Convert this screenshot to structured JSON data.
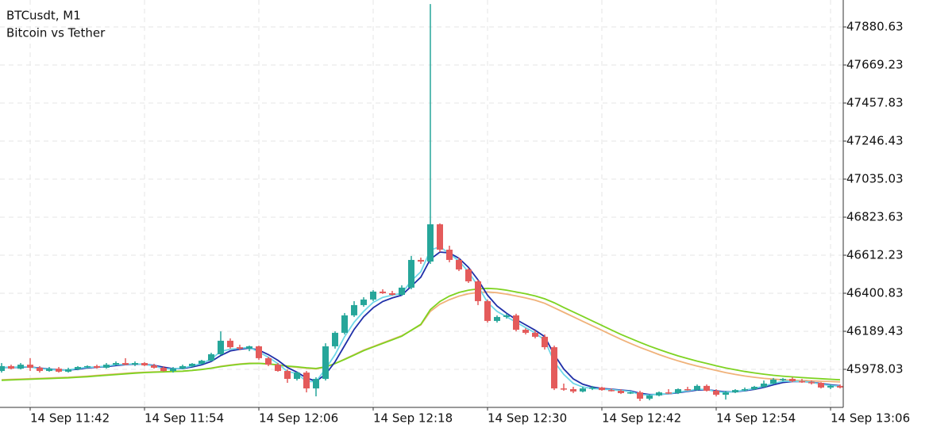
{
  "chart_data": {
    "type": "candlestick",
    "title": "BTCusdt, M1",
    "subtitle": "Bitcoin vs Tether",
    "categories": [
      null,
      null,
      null,
      "14 Sep 11:42",
      null,
      null,
      null,
      null,
      null,
      null,
      null,
      null,
      null,
      null,
      null,
      "14 Sep 11:54",
      null,
      null,
      null,
      null,
      null,
      null,
      null,
      null,
      null,
      null,
      null,
      "14 Sep 12:06",
      null,
      null,
      null,
      null,
      null,
      null,
      null,
      null,
      null,
      null,
      null,
      "14 Sep 12:18",
      null,
      null,
      null,
      null,
      null,
      null,
      null,
      null,
      null,
      null,
      null,
      "14 Sep 12:30",
      null,
      null,
      null,
      null,
      null,
      null,
      null,
      null,
      null,
      null,
      null,
      "14 Sep 12:42",
      null,
      null,
      null,
      null,
      null,
      null,
      null,
      null,
      null,
      null,
      null,
      "14 Sep 12:54",
      null,
      null,
      null,
      null,
      null,
      null,
      null,
      null,
      null,
      null,
      null,
      "14 Sep 13:06",
      null
    ],
    "open": [
      45969,
      45996,
      45982,
      46004,
      45987,
      45969,
      45982,
      45965,
      45978,
      45991,
      45996,
      45987,
      46004,
      46013,
      46004,
      46013,
      46000,
      45987,
      45969,
      45982,
      45996,
      46009,
      46026,
      46062,
      46137,
      46101,
      46093,
      46106,
      46040,
      46004,
      45969,
      45925,
      45960,
      45872,
      45925,
      46106,
      46181,
      46278,
      46335,
      46366,
      46410,
      46401,
      46392,
      46432,
      46586,
      46577,
      46784,
      46643,
      46586,
      46533,
      46467,
      46357,
      46247,
      46269,
      46278,
      46198,
      46181,
      46159,
      46101,
      45872,
      45868,
      45855,
      45872,
      45877,
      45863,
      45859,
      45846,
      45850,
      45815,
      45833,
      45850,
      45846,
      45868,
      45863,
      45886,
      45859,
      45837,
      45850,
      45863,
      45868,
      45881,
      45899,
      45921,
      45925,
      45912,
      45907,
      45903,
      45877,
      45886
    ],
    "high": [
      46013,
      46004,
      46013,
      46040,
      45996,
      45991,
      45991,
      45987,
      45996,
      46000,
      46004,
      46013,
      46022,
      46040,
      46022,
      46018,
      46009,
      45996,
      45991,
      46004,
      46013,
      46031,
      46070,
      46189,
      46150,
      46115,
      46110,
      46110,
      46048,
      46013,
      45978,
      45965,
      45969,
      45934,
      46123,
      46189,
      46291,
      46357,
      46379,
      46418,
      46423,
      46414,
      46445,
      46608,
      46599,
      48008,
      46789,
      46665,
      46599,
      46542,
      46476,
      46366,
      46278,
      46287,
      46287,
      46207,
      46194,
      46172,
      46110,
      45899,
      45881,
      45881,
      45886,
      45881,
      45872,
      45868,
      45855,
      45859,
      45837,
      45855,
      45868,
      45872,
      45881,
      45894,
      45894,
      45868,
      45859,
      45868,
      45877,
      45886,
      45916,
      45930,
      45930,
      45934,
      45925,
      45916,
      45907,
      45894,
      45894
    ],
    "low": [
      45960,
      45978,
      45978,
      45969,
      45960,
      45965,
      45960,
      45960,
      45973,
      45982,
      45982,
      45982,
      46000,
      46000,
      45996,
      45996,
      45982,
      45965,
      45960,
      45978,
      45991,
      46004,
      46022,
      46057,
      46093,
      46084,
      46079,
      46031,
      45996,
      45965,
      45903,
      45916,
      45850,
      45828,
      45916,
      46093,
      46172,
      46269,
      46326,
      46357,
      46397,
      46388,
      46388,
      46423,
      46564,
      46564,
      46630,
      46573,
      46524,
      46458,
      46335,
      46238,
      46238,
      46260,
      46189,
      46172,
      46150,
      46088,
      45863,
      45859,
      45846,
      45850,
      45863,
      45859,
      45855,
      45841,
      45841,
      45802,
      45806,
      45828,
      45841,
      45841,
      45859,
      45859,
      45855,
      45828,
      45810,
      45846,
      45855,
      45863,
      45877,
      45894,
      45912,
      45907,
      45903,
      45894,
      45872,
      45868,
      45872
    ],
    "close": [
      45996,
      45982,
      46004,
      45987,
      45969,
      45982,
      45965,
      45978,
      45991,
      45996,
      45987,
      46004,
      46013,
      46004,
      46013,
      46000,
      45987,
      45969,
      45982,
      45996,
      46009,
      46026,
      46062,
      46137,
      46101,
      46093,
      46106,
      46040,
      46004,
      45969,
      45925,
      45960,
      45872,
      45925,
      46106,
      46181,
      46278,
      46335,
      46366,
      46410,
      46401,
      46392,
      46432,
      46586,
      46577,
      46784,
      46643,
      46586,
      46533,
      46467,
      46357,
      46247,
      46269,
      46278,
      46198,
      46181,
      46159,
      46101,
      45872,
      45868,
      45855,
      45872,
      45877,
      45863,
      45859,
      45846,
      45850,
      45815,
      45833,
      45850,
      45846,
      45868,
      45863,
      45886,
      45859,
      45837,
      45850,
      45863,
      45868,
      45881,
      45899,
      45921,
      45925,
      45912,
      45907,
      45903,
      45877,
      45886,
      45877
    ],
    "up_color": "#26a69a",
    "down_color": "#e45b5b",
    "series": [
      {
        "color": "#f0b27a",
        "values": [
          45920,
          45922,
          45924,
          45926,
          45928,
          45930,
          45932,
          45934,
          45937,
          45940,
          45944,
          45948,
          45952,
          45956,
          45960,
          45962,
          45964,
          45965,
          45966,
          45968,
          45972,
          45978,
          45985,
          45995,
          46002,
          46008,
          46012,
          46012,
          46008,
          46002,
          45994,
          45990,
          45984,
          45980,
          45990,
          46010,
          46035,
          46060,
          46085,
          46105,
          46125,
          46145,
          46165,
          46195,
          46225,
          46300,
          46340,
          46365,
          46385,
          46398,
          46405,
          46408,
          46404,
          46396,
          46386,
          46375,
          46362,
          46345,
          46320,
          46295,
          46270,
          46245,
          46220,
          46195,
          46170,
          46145,
          46122,
          46100,
          46080,
          46060,
          46042,
          46025,
          46010,
          45996,
          45984,
          45972,
          45960,
          45950,
          45941,
          45934,
          45928,
          45924,
          45920,
          45918,
          45916,
          45914,
          45912,
          45910,
          45908
        ]
      },
      {
        "color": "#7ed321",
        "values": [
          45917,
          45919,
          45921,
          45923,
          45925,
          45927,
          45929,
          45931,
          45934,
          45937,
          45941,
          45945,
          45949,
          45953,
          45957,
          45960,
          45962,
          45964,
          45966,
          45968,
          45972,
          45977,
          45984,
          45993,
          46000,
          46006,
          46010,
          46011,
          46008,
          46003,
          45996,
          45992,
          45987,
          45983,
          45992,
          46010,
          46033,
          46057,
          46082,
          46102,
          46122,
          46142,
          46162,
          46195,
          46228,
          46310,
          46355,
          46385,
          46405,
          46418,
          46425,
          46428,
          46425,
          46418,
          46408,
          46398,
          46386,
          46370,
          46348,
          46322,
          46297,
          46272,
          46247,
          46222,
          46197,
          46172,
          46150,
          46128,
          46107,
          46088,
          46070,
          46053,
          46038,
          46024,
          46011,
          45998,
          45986,
          45976,
          45966,
          45958,
          45951,
          45945,
          45940,
          45936,
          45932,
          45929,
          45926,
          45923,
          45920
        ]
      },
      {
        "color": "#1f2fa8",
        "values": [
          45988,
          45988,
          45990,
          45991,
          45985,
          45980,
          45975,
          45974,
          45979,
          45986,
          45990,
          45993,
          45999,
          46004,
          46007,
          46006,
          46000,
          45990,
          45982,
          45983,
          45991,
          46003,
          46022,
          46055,
          46080,
          46090,
          46096,
          46085,
          46060,
          46028,
          45988,
          45962,
          45930,
          45912,
          45950,
          46020,
          46110,
          46200,
          46270,
          46320,
          46355,
          46375,
          46390,
          46440,
          46490,
          46590,
          46630,
          46625,
          46595,
          46545,
          46475,
          46390,
          46330,
          46290,
          46255,
          46225,
          46195,
          46160,
          46060,
          45980,
          45925,
          45895,
          45880,
          45872,
          45868,
          45863,
          45858,
          45845,
          45838,
          45839,
          45842,
          45848,
          45855,
          45863,
          45865,
          45858,
          45853,
          45854,
          45859,
          45867,
          45878,
          45892,
          45905,
          45910,
          45910,
          45907,
          45899,
          45892,
          45887
        ]
      },
      {
        "color": "#6fd8e8",
        "values": [
          45990,
          45988,
          45993,
          45991,
          45982,
          45979,
          45972,
          45975,
          45983,
          45990,
          45991,
          45996,
          46004,
          46006,
          46009,
          46005,
          45997,
          45982,
          45980,
          45986,
          45997,
          46011,
          46035,
          46078,
          46090,
          46095,
          46100,
          46075,
          46045,
          46010,
          45966,
          45955,
          45910,
          45910,
          45980,
          46060,
          46160,
          46240,
          46300,
          46350,
          46378,
          46390,
          46400,
          46470,
          46520,
          46640,
          46660,
          46620,
          46580,
          46520,
          46440,
          46350,
          46300,
          46270,
          46240,
          46210,
          46180,
          46140,
          46020,
          45950,
          45900,
          45880,
          45872,
          45868,
          45865,
          45860,
          45855,
          45838,
          45835,
          45840,
          45843,
          45852,
          45858,
          45868,
          45866,
          45854,
          45850,
          45855,
          45862,
          45872,
          45885,
          45900,
          45912,
          45913,
          45910,
          45906,
          45895,
          45888,
          45884
        ]
      }
    ],
    "ylim": [
      45766.6,
      48030.3
    ],
    "yticks": [
      45978.03,
      46189.43,
      46400.83,
      46612.23,
      46823.63,
      47035.03,
      47246.43,
      47457.83,
      47669.23,
      47880.63
    ],
    "grid": true
  }
}
